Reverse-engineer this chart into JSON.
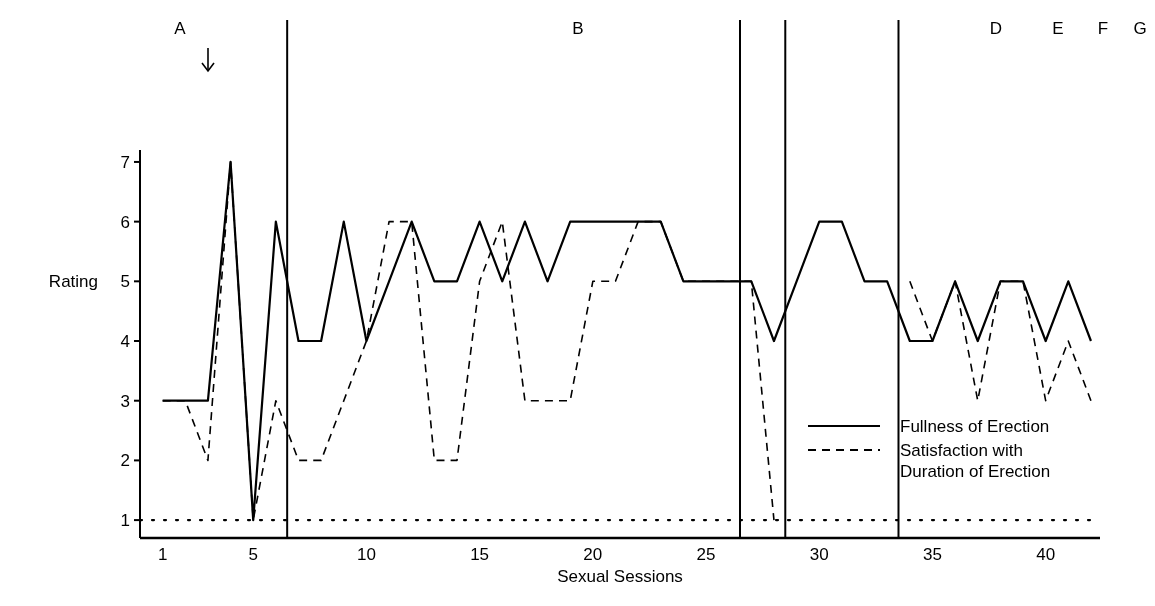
{
  "chart_data": {
    "type": "line",
    "xlabel": "Sexual Sessions",
    "ylabel": "Rating",
    "x": [
      1,
      2,
      3,
      4,
      5,
      6,
      7,
      8,
      9,
      10,
      11,
      12,
      13,
      14,
      15,
      16,
      17,
      18,
      19,
      20,
      21,
      22,
      23,
      24,
      25,
      26,
      27,
      28,
      29,
      30,
      31,
      32,
      33,
      34,
      35,
      36,
      37,
      38,
      39,
      40,
      41,
      42
    ],
    "series": [
      {
        "name": "Fullness of Erection",
        "color": "#000000",
        "line_style": "solid",
        "values": [
          3,
          3,
          3,
          7,
          1,
          6,
          4,
          4,
          6,
          4,
          5,
          6,
          5,
          5,
          6,
          5,
          6,
          5,
          6,
          6,
          6,
          6,
          6,
          5,
          5,
          5,
          5,
          4,
          5,
          6,
          6,
          5,
          5,
          4,
          4,
          5,
          4,
          5,
          5,
          4,
          5,
          4
        ]
      },
      {
        "name": "Satisfaction with Duration of Erection",
        "color": "#000000",
        "line_style": "dashed",
        "values": [
          3,
          3,
          2,
          7,
          1,
          3,
          2,
          2,
          3,
          4,
          6,
          6,
          2,
          2,
          5,
          6,
          3,
          3,
          3,
          5,
          5,
          6,
          6,
          5,
          5,
          5,
          5,
          1,
          null,
          null,
          null,
          null,
          null,
          5,
          4,
          5,
          3,
          5,
          5,
          3,
          4,
          3
        ]
      }
    ],
    "xlim": [
      0,
      42.4
    ],
    "xticks": [
      1,
      5,
      10,
      15,
      20,
      25,
      30,
      35,
      40
    ],
    "ylim": [
      0.7,
      7.2
    ],
    "yticks": [
      1,
      2,
      3,
      4,
      5,
      6,
      7
    ],
    "grid": false,
    "legend": "bottom right",
    "ref_lines": [
      {
        "axis": "x",
        "value": 6.5
      },
      {
        "axis": "x",
        "value": 26.5
      },
      {
        "axis": "x",
        "value": 28.5
      },
      {
        "axis": "x",
        "value": 33.5
      },
      {
        "axis": "y",
        "value": 1,
        "line_style": "dotted"
      }
    ],
    "annotations": [
      "A",
      "B",
      "D",
      "E",
      "F",
      "G"
    ]
  }
}
